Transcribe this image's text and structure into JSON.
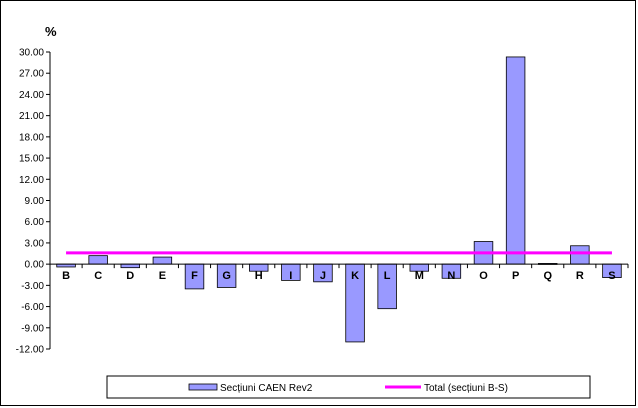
{
  "chart_data": {
    "type": "bar",
    "y_unit": "%",
    "categories": [
      "B",
      "C",
      "D",
      "E",
      "F",
      "G",
      "H",
      "I",
      "J",
      "K",
      "L",
      "M",
      "N",
      "O",
      "P",
      "Q",
      "R",
      "S"
    ],
    "series": [
      {
        "name": "Secțiuni CAEN Rev2",
        "type": "bar",
        "color": "#9999ff",
        "values": [
          -0.4,
          1.2,
          -0.5,
          1.0,
          -3.5,
          -3.3,
          -1.0,
          -2.3,
          -2.5,
          -11.0,
          -6.3,
          -1.0,
          -2.0,
          3.2,
          29.3,
          0.1,
          2.6,
          -1.9
        ]
      },
      {
        "name": "Total (secțiuni B-S)",
        "type": "line",
        "color": "#ff00ff",
        "value": 1.6
      }
    ],
    "y_ticks": [
      "30.00",
      "27.00",
      "24.00",
      "21.00",
      "18.00",
      "15.00",
      "12.00",
      "9.00",
      "6.00",
      "3.00",
      "0.00",
      "-3.00",
      "-6.00",
      "-9.00",
      "-12.00"
    ],
    "ylim": [
      -12,
      30
    ],
    "y_step": 3,
    "grid": false,
    "legend_position": "bottom"
  }
}
